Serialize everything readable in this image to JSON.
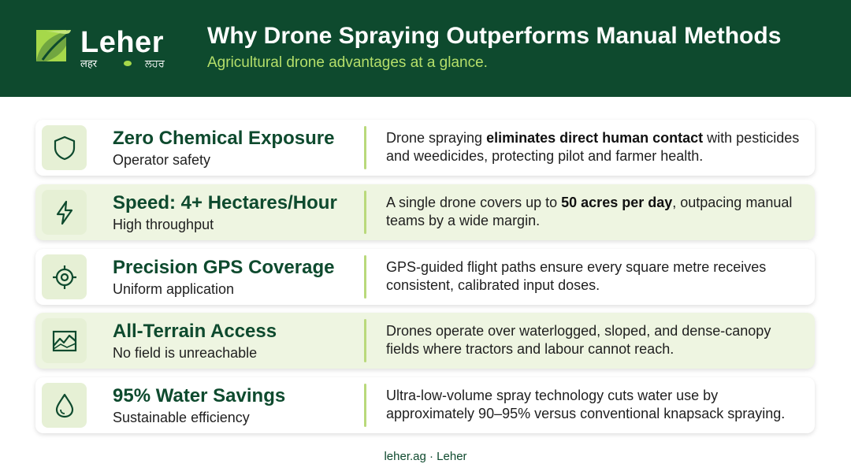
{
  "brand": {
    "name": "Leher",
    "script_left": "लहर",
    "script_right": "ਲਹਰ",
    "primary_color": "#0e4a2e",
    "accent_color": "#a6d84a"
  },
  "header": {
    "title": "Why Drone Spraying Outperforms Manual Methods",
    "subtitle": "Agricultural drone advantages at a glance."
  },
  "cards": [
    {
      "icon": "shield-icon",
      "title": "Zero Chemical Exposure",
      "subtitle": "Operator safety",
      "desc_before": "Drone spraying ",
      "desc_bold": "eliminates direct human contact",
      "desc_after": " with pesticides and weedicides, protecting pilot and farmer health."
    },
    {
      "icon": "lightning-icon",
      "title": "Speed: 4+ Hectares/Hour",
      "subtitle": "High throughput",
      "desc_before": "A single drone covers up to ",
      "desc_bold": "50 acres per day",
      "desc_after": ", outpacing manual teams by a wide margin."
    },
    {
      "icon": "crosshair-icon",
      "title": "Precision GPS Coverage",
      "subtitle": "Uniform application",
      "desc_before": "GPS-guided flight paths ensure every square metre receives consistent, calibrated input doses.",
      "desc_bold": "",
      "desc_after": ""
    },
    {
      "icon": "terrain-icon",
      "title": "All-Terrain Access",
      "subtitle": "No field is unreachable",
      "desc_before": "Drones operate over waterlogged, sloped, and dense-canopy fields where tractors and labour cannot reach.",
      "desc_bold": "",
      "desc_after": ""
    },
    {
      "icon": "water-drop-icon",
      "title": "95% Water Savings",
      "subtitle": "Sustainable efficiency",
      "desc_before": "Ultra-low-volume spray technology cuts water use by approximately 90–95% versus conventional knapsack spraying.",
      "desc_bold": "",
      "desc_after": ""
    }
  ],
  "footer": {
    "text": "leher.ag · Leher"
  }
}
